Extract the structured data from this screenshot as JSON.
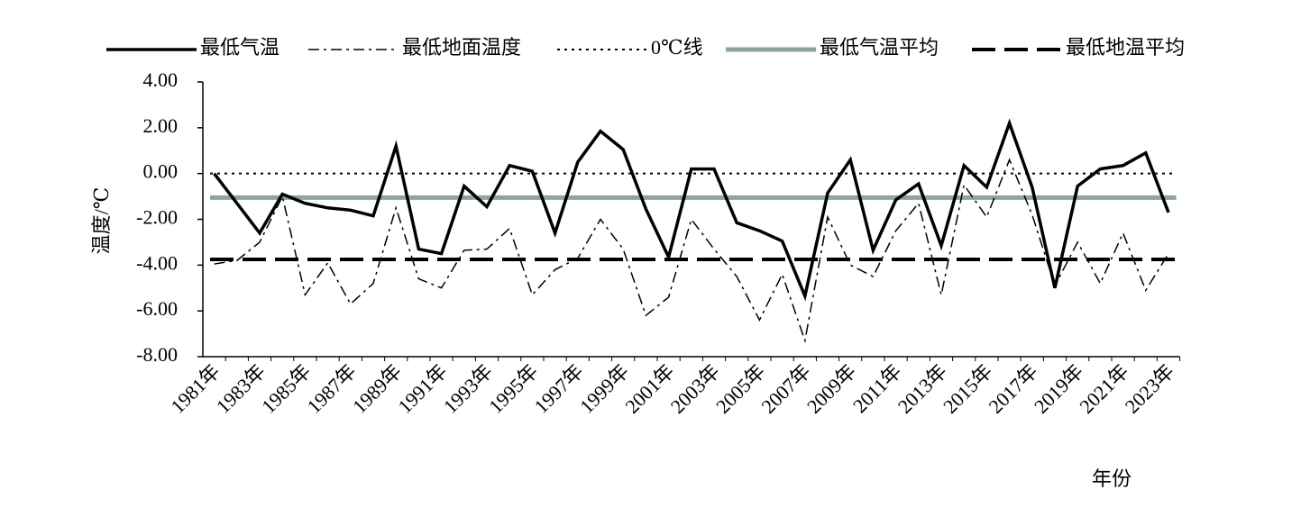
{
  "chart_data": {
    "type": "line",
    "y_label": "温度/℃",
    "x_label": "年份",
    "categories": [
      "1981年",
      null,
      "1983年",
      null,
      "1985年",
      null,
      "1987年",
      null,
      "1989年",
      null,
      "1991年",
      null,
      "1993年",
      null,
      "1995年",
      null,
      "1997年",
      null,
      "1999年",
      null,
      "2001年",
      null,
      "2003年",
      null,
      "2005年",
      null,
      "2007年",
      null,
      "2009年",
      null,
      "2011年",
      null,
      "2013年",
      null,
      "2015年",
      null,
      "2017年",
      null,
      "2019年",
      null,
      "2021年",
      null,
      "2023年"
    ],
    "series": [
      {
        "name": "最低气温",
        "color": "#000000",
        "values": [
          0.0,
          -1.3,
          -2.6,
          -0.9,
          -1.3,
          -1.5,
          -1.6,
          -1.85,
          1.2,
          -3.3,
          -3.5,
          -0.55,
          -1.45,
          0.35,
          0.1,
          -2.6,
          0.5,
          1.85,
          1.05,
          -1.55,
          -3.65,
          0.2,
          0.2,
          -2.15,
          -2.5,
          -2.95,
          -5.35,
          -0.85,
          0.6,
          -3.35,
          -1.15,
          -0.45,
          -3.15,
          0.35,
          -0.6,
          2.2,
          -0.6,
          -5.0,
          -0.55,
          0.2,
          0.35,
          0.9,
          -1.7
        ]
      },
      {
        "name": "最低地面温度",
        "color": "#000000",
        "values": [
          -3.95,
          -3.8,
          -3.0,
          -1.0,
          -5.3,
          -3.9,
          -5.7,
          -4.8,
          -1.5,
          -4.6,
          -5.0,
          -3.35,
          -3.3,
          -2.4,
          -5.3,
          -4.2,
          -3.7,
          -2.0,
          -3.3,
          -6.2,
          -5.4,
          -2.0,
          -3.3,
          -4.5,
          -6.4,
          -4.4,
          -7.3,
          -1.9,
          -4.0,
          -4.5,
          -2.5,
          -1.3,
          -5.3,
          -0.5,
          -1.9,
          0.6,
          -1.8,
          -4.9,
          -3.0,
          -4.8,
          -2.6,
          -5.1,
          -3.5
        ]
      }
    ],
    "hlines": [
      {
        "name": "0℃线",
        "color": "#000000",
        "value": 0
      },
      {
        "name": "最低气温平均",
        "color": "#8fa596",
        "value": -1.05
      },
      {
        "name": "最低地温平均",
        "color": "#000000",
        "value": -3.75
      }
    ],
    "ylim": [
      -8,
      4
    ],
    "yticks": [
      {
        "value": 4,
        "label": "4.00"
      },
      {
        "value": 2,
        "label": "2.00"
      },
      {
        "value": 0,
        "label": "0.00"
      },
      {
        "value": -2,
        "label": "-2.00"
      },
      {
        "value": -4,
        "label": "-4.00"
      },
      {
        "value": -6,
        "label": "-6.00"
      },
      {
        "value": -8,
        "label": "-8.00"
      }
    ],
    "legend": "top"
  }
}
